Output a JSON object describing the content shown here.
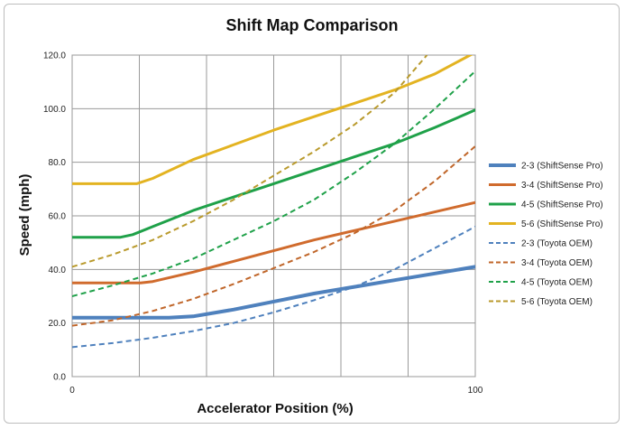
{
  "chart_data": {
    "type": "line",
    "title": "Shift Map Comparison",
    "xlabel": "Accelerator Position (%)",
    "ylabel": "Speed (mph)",
    "xlim": [
      0,
      100
    ],
    "ylim": [
      0,
      120
    ],
    "x_tick_labels": [
      "0",
      "100"
    ],
    "y_tick_labels": [
      "0.0",
      "20.0",
      "40.0",
      "60.0",
      "80.0",
      "100.0",
      "120.0"
    ],
    "grid": true,
    "legend_position": "right",
    "series": [
      {
        "name": "2-3 (ShiftSense Pro)",
        "color": "#4f81bd",
        "dash": "solid",
        "width": 4,
        "x": [
          0,
          24,
          30,
          40,
          50,
          60,
          70,
          80,
          90,
          100
        ],
        "y": [
          22,
          22,
          22.5,
          25,
          28,
          31,
          33.5,
          36,
          38.5,
          41
        ]
      },
      {
        "name": "3-4 (ShiftSense Pro)",
        "color": "#d06b2d",
        "dash": "solid",
        "width": 3,
        "x": [
          0,
          17,
          20,
          30,
          40,
          50,
          60,
          70,
          80,
          90,
          100
        ],
        "y": [
          35,
          35,
          35.5,
          39,
          43,
          47,
          51,
          54.5,
          58,
          61.5,
          65
        ]
      },
      {
        "name": "4-5 (ShiftSense Pro)",
        "color": "#1fa149",
        "dash": "solid",
        "width": 3,
        "x": [
          0,
          12,
          15,
          20,
          30,
          40,
          50,
          60,
          70,
          80,
          90,
          100
        ],
        "y": [
          52,
          52,
          53,
          56,
          62,
          67,
          72,
          77,
          82,
          87,
          93,
          99.5
        ]
      },
      {
        "name": "5-6 (ShiftSense Pro)",
        "color": "#e3b321",
        "dash": "solid",
        "width": 3,
        "x": [
          0,
          16,
          20,
          30,
          40,
          50,
          60,
          70,
          80,
          90,
          100
        ],
        "y": [
          72,
          72,
          74,
          81,
          86.5,
          92,
          97,
          102,
          107,
          113,
          121
        ]
      },
      {
        "name": "2-3 (Toyota OEM)",
        "color": "#4f81bd",
        "dash": "dashed",
        "width": 2,
        "x": [
          0,
          10,
          20,
          30,
          40,
          50,
          60,
          70,
          80,
          90,
          100
        ],
        "y": [
          11,
          12.5,
          14.5,
          17,
          20,
          24,
          28.5,
          33.5,
          40,
          48,
          56
        ]
      },
      {
        "name": "3-4 (Toyota OEM)",
        "color": "#c0662a",
        "dash": "dashed",
        "width": 2,
        "x": [
          0,
          10,
          20,
          30,
          40,
          50,
          60,
          70,
          80,
          90,
          100
        ],
        "y": [
          19,
          21,
          24.5,
          29,
          34.5,
          40.5,
          46.5,
          53.5,
          62,
          73,
          86
        ]
      },
      {
        "name": "4-5 (Toyota OEM)",
        "color": "#1fa149",
        "dash": "dashed",
        "width": 2,
        "x": [
          0,
          10,
          20,
          30,
          40,
          50,
          60,
          70,
          80,
          90,
          100
        ],
        "y": [
          30,
          34,
          38.5,
          44,
          51,
          58,
          66,
          76,
          87,
          100,
          114
        ]
      },
      {
        "name": "5-6 (Toyota OEM)",
        "color": "#b99a2c",
        "dash": "dashed",
        "width": 2,
        "x": [
          0,
          10,
          20,
          30,
          40,
          50,
          60,
          70,
          80,
          88
        ],
        "y": [
          41,
          45.5,
          51,
          58,
          66,
          75,
          84,
          94,
          106,
          120
        ]
      }
    ]
  }
}
